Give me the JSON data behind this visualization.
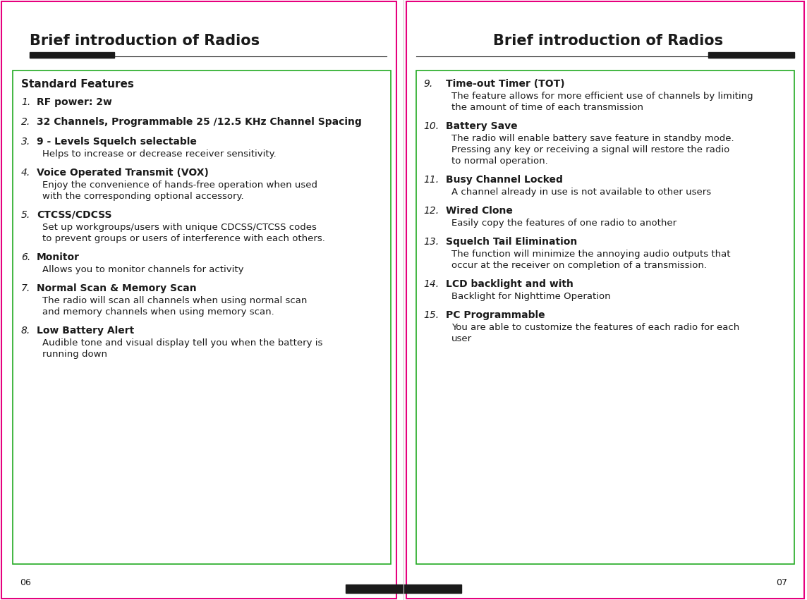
{
  "bg_color": "#ffffff",
  "magenta": "#e6007e",
  "black": "#1a1a1a",
  "green_border": "#22aa22",
  "title_left": "Brief introduction of Radios",
  "title_right": "Brief introduction of Radios",
  "page_left": "06",
  "page_right": "07",
  "left_header": "Standard Features",
  "left_items": [
    {
      "num": "1.",
      "bold": "RF power: 2w",
      "body": []
    },
    {
      "num": "2.",
      "bold": "32 Channels, Programmable 25 /12.5 KHz Channel Spacing",
      "body": []
    },
    {
      "num": "3.",
      "bold": "9 - Levels Squelch selectable",
      "body": [
        "Helps to increase or decrease receiver sensitivity."
      ]
    },
    {
      "num": "4.",
      "bold": "Voice Operated Transmit (VOX)",
      "body": [
        "Enjoy the convenience of hands-free operation when used",
        "with the corresponding optional accessory."
      ]
    },
    {
      "num": "5.",
      "bold": "CTCSS/CDCSS",
      "body": [
        "Set up workgroups/users with unique CDCSS/CTCSS codes",
        "to prevent groups or users of interference with each others."
      ]
    },
    {
      "num": "6.",
      "bold": "Monitor",
      "body": [
        "Allows you to monitor channels for activity"
      ]
    },
    {
      "num": "7.",
      "bold": "Normal Scan & Memory Scan",
      "body": [
        "The radio will scan all channels when using normal scan",
        "and memory channels when using memory scan."
      ]
    },
    {
      "num": "8.",
      "bold": "Low Battery Alert",
      "body": [
        "Audible tone and visual display tell you when the battery is",
        "running down"
      ]
    }
  ],
  "right_items": [
    {
      "num": "9.",
      "bold": "Time-out Timer (TOT)",
      "body": [
        "The feature allows for more efficient use of channels by limiting",
        "the amount of time of each transmission"
      ]
    },
    {
      "num": "10.",
      "bold": "Battery Save",
      "body": [
        "The radio will enable battery save feature in standby mode.",
        "Pressing any key or receiving a signal will restore the radio",
        "to normal operation."
      ]
    },
    {
      "num": "11.",
      "bold": "Busy Channel Locked",
      "body": [
        "A channel already in use is not available to other users"
      ]
    },
    {
      "num": "12.",
      "bold": "Wired Clone",
      "body": [
        "Easily copy the features of one radio to another"
      ]
    },
    {
      "num": "13.",
      "bold": "Squelch Tail Elimination",
      "body": [
        "The function will minimize the annoying audio outputs that",
        "occur at the receiver on completion of a transmission."
      ]
    },
    {
      "num": "14.",
      "bold": "LCD backlight and with",
      "body": [
        "Backlight for Nighttime Operation"
      ]
    },
    {
      "num": "15.",
      "bold": "PC Programmable",
      "body": [
        "You are able to customize the features of each radio for each",
        "user"
      ]
    }
  ]
}
